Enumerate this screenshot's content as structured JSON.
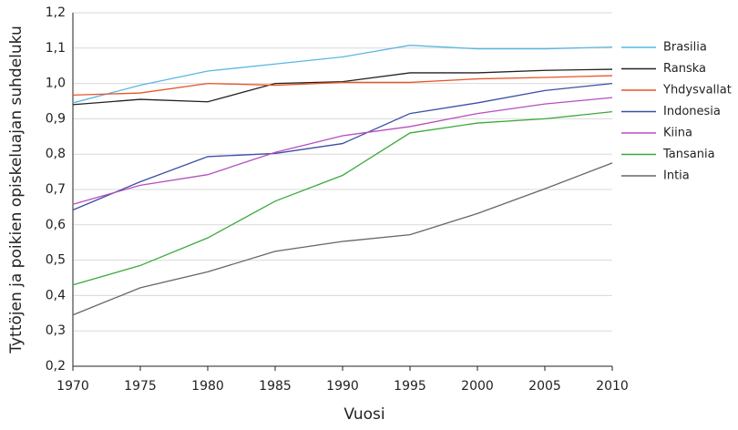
{
  "chart_data": {
    "type": "line",
    "x_label": "Vuosi",
    "y_label": "Tyttöjen ja poikien opiskeluajan suhdeluku",
    "x": [
      1970,
      1975,
      1980,
      1985,
      1990,
      1995,
      2000,
      2005,
      2010
    ],
    "xlim": [
      1970,
      2010
    ],
    "xticks": [
      1970,
      1975,
      1980,
      1985,
      1990,
      1995,
      2000,
      2005,
      2010
    ],
    "ylim": [
      0.2,
      1.2
    ],
    "yticks": [
      {
        "value": 0.2,
        "label": "0,2"
      },
      {
        "value": 0.3,
        "label": "0,3"
      },
      {
        "value": 0.4,
        "label": "0,4"
      },
      {
        "value": 0.5,
        "label": "0,5"
      },
      {
        "value": 0.6,
        "label": "0,6"
      },
      {
        "value": 0.7,
        "label": "0,7"
      },
      {
        "value": 0.8,
        "label": "0,8"
      },
      {
        "value": 0.9,
        "label": "0,9"
      },
      {
        "value": 1.0,
        "label": "1,0"
      },
      {
        "value": 1.1,
        "label": "1,1"
      },
      {
        "value": 1.2,
        "label": "1,2"
      }
    ],
    "grid": true,
    "legend": "right",
    "series": [
      {
        "name": "Brasilia",
        "color": "#5bb6e3",
        "values": [
          0.945,
          0.995,
          1.035,
          1.055,
          1.075,
          1.108,
          1.098,
          1.098,
          1.103
        ]
      },
      {
        "name": "Ranska",
        "color": "#222222",
        "values": [
          0.94,
          0.955,
          0.948,
          1.0,
          1.005,
          1.03,
          1.03,
          1.037,
          1.04
        ]
      },
      {
        "name": "Yhdysvallat",
        "color": "#e8542a",
        "values": [
          0.967,
          0.973,
          1.0,
          0.995,
          1.003,
          1.003,
          1.013,
          1.017,
          1.022
        ]
      },
      {
        "name": "Indonesia",
        "color": "#3b4fa5",
        "values": [
          0.642,
          0.722,
          0.793,
          0.802,
          0.83,
          0.915,
          0.945,
          0.98,
          1.0
        ]
      },
      {
        "name": "Kiina",
        "color": "#b54fc0",
        "values": [
          0.658,
          0.712,
          0.742,
          0.805,
          0.852,
          0.878,
          0.915,
          0.942,
          0.96
        ]
      },
      {
        "name": "Tansania",
        "color": "#3aaa3a",
        "values": [
          0.43,
          0.485,
          0.563,
          0.667,
          0.74,
          0.86,
          0.888,
          0.9,
          0.92
        ]
      },
      {
        "name": "Intia",
        "color": "#666666",
        "values": [
          0.345,
          0.422,
          0.467,
          0.525,
          0.553,
          0.572,
          0.632,
          0.702,
          0.775
        ]
      }
    ]
  }
}
